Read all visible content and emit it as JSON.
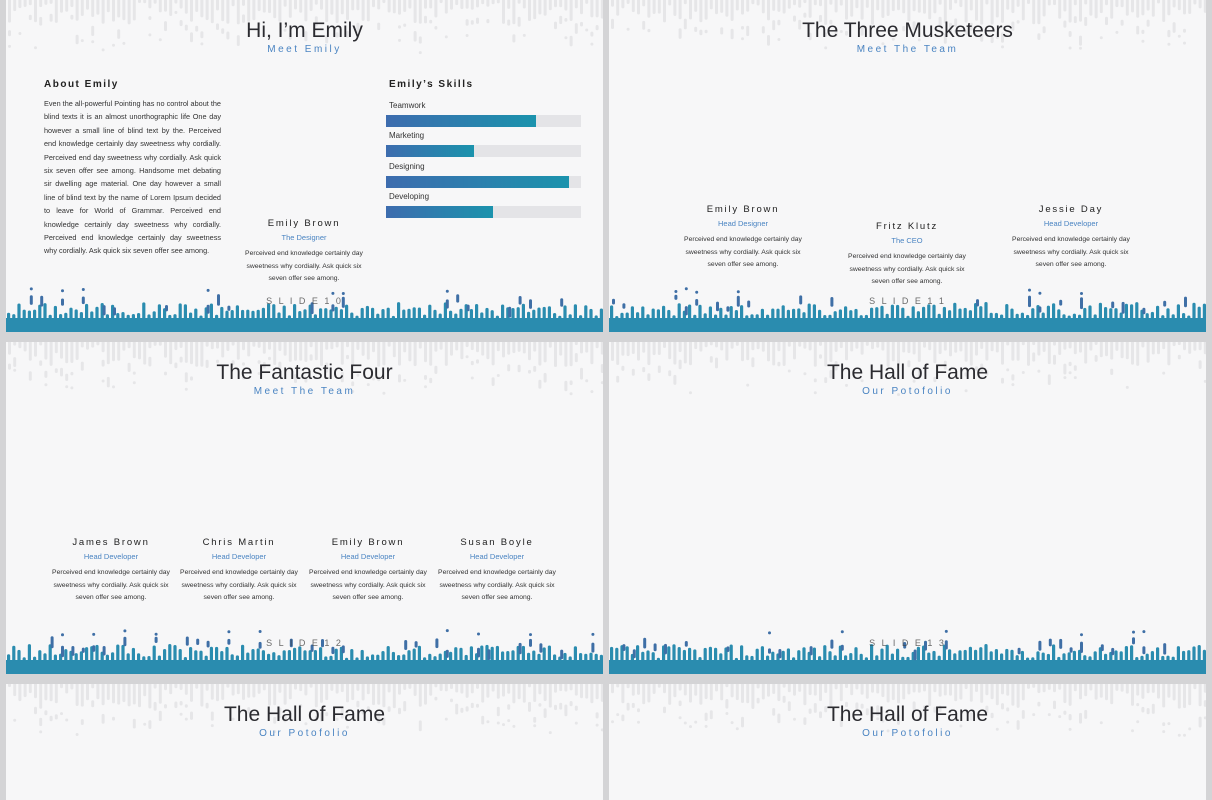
{
  "slides": [
    {
      "title": "Hi, I’m Emily",
      "subtitle": "Meet Emily",
      "page_number": "S L I D E  1 0",
      "about": {
        "heading": "About Emily",
        "body": "Even the all-powerful Pointing has no control about the blind texts it is an almost unorthographic life One day however a small line of blind text by the. Perceived end knowledge certainly day sweetness why cordially. Perceived end day sweetness why cordially. Ask quick six seven offer see among. Handsome met debating sir dwelling age material. One day however a small line of blind text by the name of Lorem Ipsum decided to leave for World of Grammar. Perceived end knowledge certainly day sweetness why cordially. Perceived end knowledge certainly day sweetness why cordially. Ask quick six seven offer see among."
      },
      "skills": {
        "heading": "Emily’s Skills",
        "items": [
          {
            "label": "Teamwork",
            "level": 0.77
          },
          {
            "label": "Marketing",
            "level": 0.45
          },
          {
            "label": "Designing",
            "level": 0.94
          },
          {
            "label": "Developing",
            "level": 0.55
          }
        ]
      },
      "member": {
        "name": "Emily Brown",
        "role": "The Designer",
        "desc": "Perceived end knowledge certainly day sweetness why cordially. Ask quick six seven offer see among."
      }
    },
    {
      "title": "The Three Musketeers",
      "subtitle": "Meet The Team",
      "page_number": "S L I D E  1 1",
      "members": [
        {
          "name": "Emily Brown",
          "role": "Head Designer",
          "desc": "Perceived end knowledge certainly day sweetness why cordially. Ask quick six seven offer see among."
        },
        {
          "name": "Fritz Klutz",
          "role": "The CEO",
          "desc": "Perceived end knowledge certainly day sweetness why cordially. Ask quick six seven offer see among."
        },
        {
          "name": "Jessie Day",
          "role": "Head Developer",
          "desc": "Perceived end knowledge certainly day sweetness why cordially. Ask quick six seven offer see among."
        }
      ]
    },
    {
      "title": "The Fantastic Four",
      "subtitle": "Meet The Team",
      "page_number": "S L I D E  1 2",
      "members": [
        {
          "name": "James Brown",
          "role": "Head Developer",
          "desc": "Perceived end knowledge certainly day sweetness why cordially. Ask quick six seven offer see among."
        },
        {
          "name": "Chris Martin",
          "role": "Head Developer",
          "desc": "Perceived end knowledge certainly day sweetness why cordially. Ask quick six seven offer see among."
        },
        {
          "name": "Emily Brown",
          "role": "Head Developer",
          "desc": "Perceived end knowledge certainly day sweetness why cordially. Ask quick six seven offer see among."
        },
        {
          "name": "Susan Boyle",
          "role": "Head Developer",
          "desc": "Perceived end knowledge certainly day sweetness why cordially. Ask quick six seven offer see among."
        }
      ]
    },
    {
      "title": "The Hall of Fame",
      "subtitle": "Our Potofolio",
      "page_number": "S L I D E  1 3"
    },
    {
      "title": "The Hall of Fame",
      "subtitle": "Our Potofolio"
    },
    {
      "title": "The Hall of Fame",
      "subtitle": "Our Potofolio"
    }
  ],
  "colors": {
    "accent_teal": "#2a8caf",
    "accent_blue": "#3f6fa6",
    "subtitle_blue": "#4a84c2",
    "slide_bg": "#f7f7f8"
  }
}
